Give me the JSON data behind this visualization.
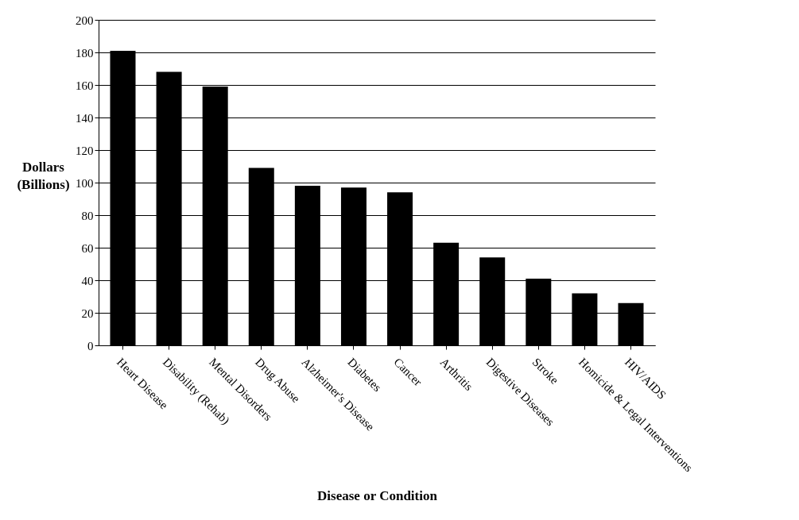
{
  "chart_data": {
    "type": "bar",
    "xlabel": "Disease or Condition",
    "ylabel": "Dollars\n(Billions)",
    "categories": [
      "Heart Disease",
      "Disability (Rehab)",
      "Mental Disorders",
      "Drug Abuse",
      "Alzheimer's Disease",
      "Diabetes",
      "Cancer",
      "Arthritis",
      "Digestive Diseases",
      "Stroke",
      "Homicide & Legal Interventions",
      "HIV/AIDS"
    ],
    "values": [
      181,
      168,
      159,
      109,
      98,
      97,
      94,
      63,
      54,
      41,
      32,
      26
    ],
    "color": "#000000",
    "ylim": [
      0,
      200
    ],
    "yticks": [
      0,
      20,
      40,
      60,
      80,
      100,
      120,
      140,
      160,
      180,
      200
    ],
    "grid": "y"
  }
}
